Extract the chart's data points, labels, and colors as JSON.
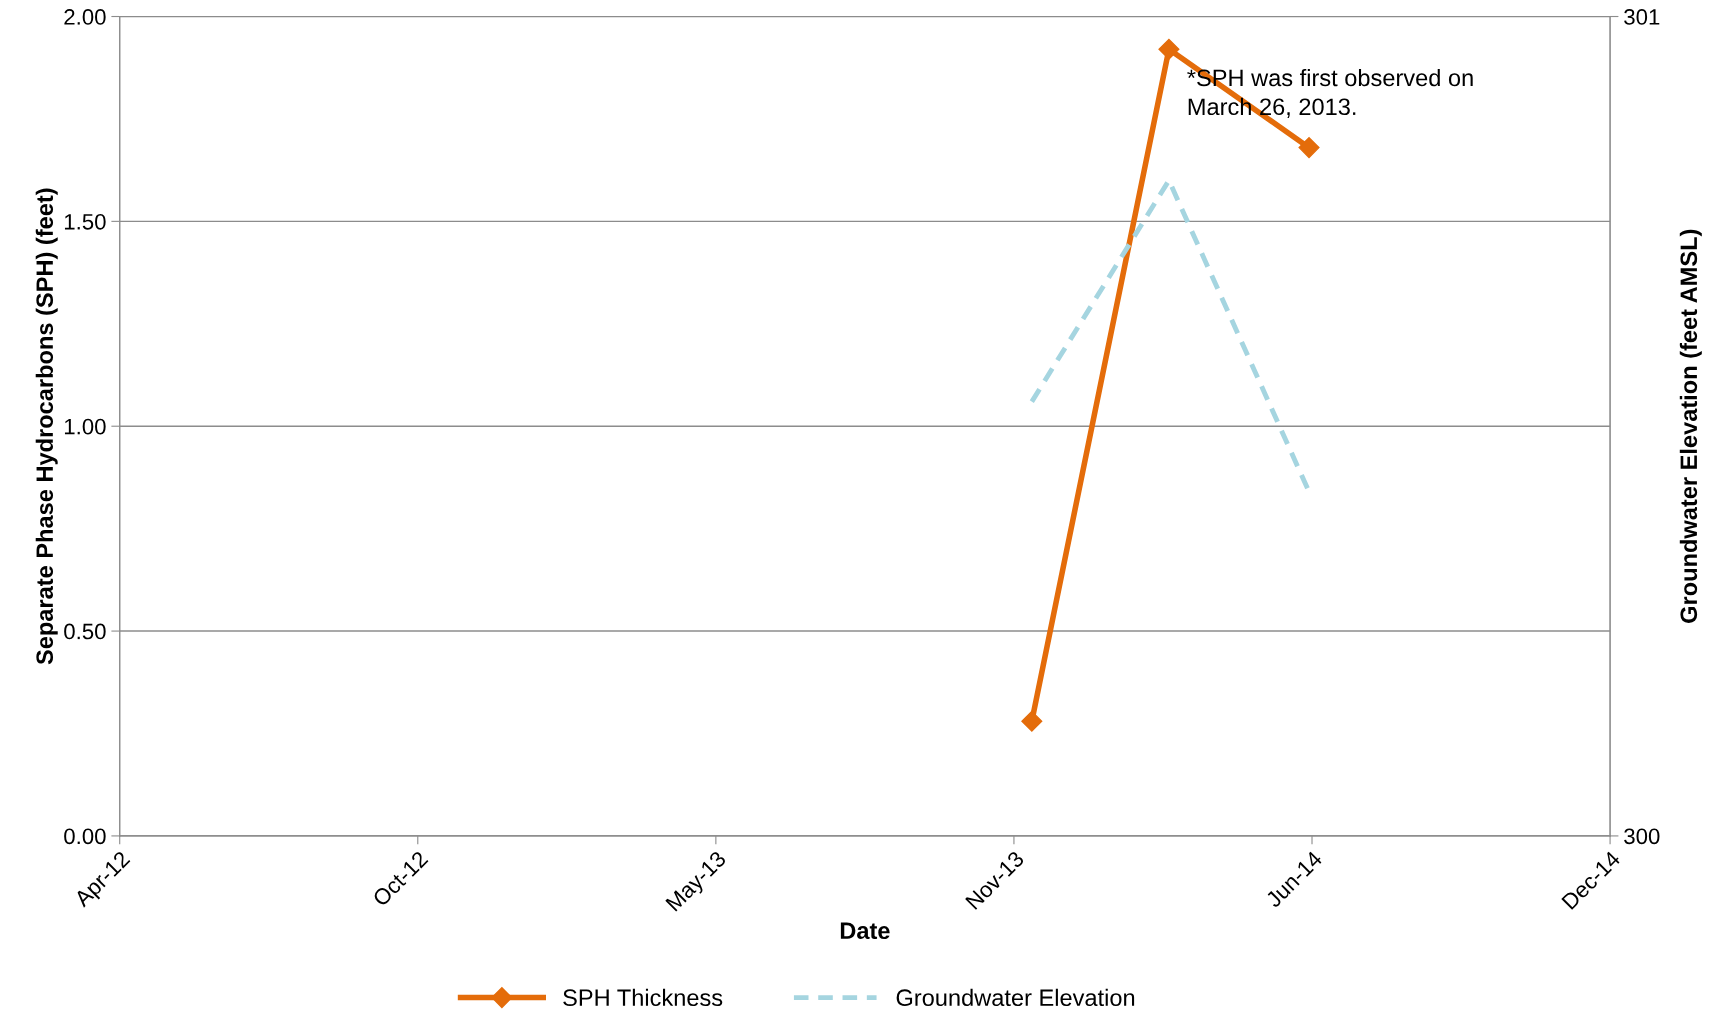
{
  "chart_data": {
    "type": "line",
    "xlabel": "Date",
    "ylabel": "Separate Phase Hydrocarbons (SPH) (feet)",
    "y2label": "Groundwater Elevation (feet AMSL)",
    "x": [
      "2013-12-04",
      "2014-03-06",
      "2014-06-08"
    ],
    "series": [
      {
        "name": "SPH Thickness",
        "color": "#e46c0a",
        "values": [
          0.28,
          1.92,
          1.68
        ],
        "marker": "diamond",
        "line_style": "solid"
      },
      {
        "name": "Groundwater Elevation",
        "color": "#a5d5e0",
        "values": [
          300.53,
          300.8,
          300.42
        ],
        "axis": "y2",
        "marker": "none",
        "line_style": "dashed"
      }
    ],
    "xlim": [
      "2012-04-01",
      "2014-12-27"
    ],
    "xticks": [
      {
        "value": "2012-04-01",
        "label": "Apr-12"
      },
      {
        "value": "2012-10-18",
        "label": "Oct-12"
      },
      {
        "value": "2013-05-06",
        "label": "May-13"
      },
      {
        "value": "2013-11-22",
        "label": "Nov-13"
      },
      {
        "value": "2014-06-10",
        "label": "Jun-14"
      },
      {
        "value": "2014-12-27",
        "label": "Dec-14"
      }
    ],
    "ylim": [
      0,
      2
    ],
    "yticks": [
      {
        "value": 0,
        "label": "0.00"
      },
      {
        "value": 0.5,
        "label": "0.50"
      },
      {
        "value": 1,
        "label": "1.00"
      },
      {
        "value": 1.5,
        "label": "1.50"
      },
      {
        "value": 2,
        "label": "2.00"
      }
    ],
    "y2lim": [
      300,
      301
    ],
    "y2ticks": [
      300,
      301
    ],
    "grid": "y",
    "legend": "bottom",
    "annotations": [
      "*SPH was first observed on\nMarch 26, 2013."
    ]
  }
}
